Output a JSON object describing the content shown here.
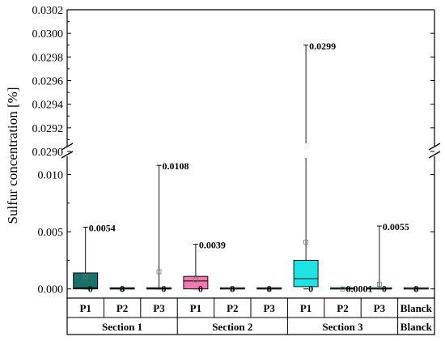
{
  "chart_data": {
    "type": "box",
    "ylabel": "Sulfur concentration [%]",
    "axis_break": true,
    "y_upper_segment": {
      "ylim": [
        0.029,
        0.0302
      ],
      "ticks": [
        "0.0290",
        "0.0292",
        "0.0294",
        "0.0296",
        "0.0298",
        "0.0300",
        "0.0302"
      ],
      "tick_values": [
        0.029,
        0.0292,
        0.0294,
        0.0296,
        0.0298,
        0.03,
        0.0302
      ]
    },
    "y_lower_segment": {
      "ylim": [
        -0.0008,
        0.0123
      ],
      "ticks": [
        "0.000",
        "0.005",
        "0.010"
      ],
      "tick_values": [
        0,
        0.005,
        0.01
      ]
    },
    "categories": [
      "P1",
      "P2",
      "P3",
      "P1",
      "P2",
      "P3",
      "P1",
      "P2",
      "P3",
      "Blanck"
    ],
    "groups": [
      {
        "label": "Section 1",
        "span": 3
      },
      {
        "label": "Section 2",
        "span": 3
      },
      {
        "label": "Section 3",
        "span": 3
      },
      {
        "label": "Blanck",
        "span": 1
      }
    ],
    "boxes": [
      {
        "category": "P1",
        "section": "Section 1",
        "color": "#1b7068",
        "q1": 0.0,
        "median": 0.0001,
        "q3": 0.0014,
        "mean": 0.0011,
        "min": 0.0,
        "max": 0.0054,
        "max_label": "0.0054",
        "min_label": "0"
      },
      {
        "category": "P2",
        "section": "Section 1",
        "color": "#1b7068",
        "q1": 0.0,
        "median": 0.0,
        "q3": 0.0,
        "mean": 0.0,
        "min": 0.0,
        "max": 0.0,
        "max_label": "0",
        "min_label": ""
      },
      {
        "category": "P3",
        "section": "Section 1",
        "color": "#1b7068",
        "q1": 0.0,
        "median": 0.0,
        "q3": 0.0001,
        "mean": 0.0015,
        "min": 0.0,
        "max": 0.0108,
        "max_label": "0.0108",
        "min_label": "0"
      },
      {
        "category": "P1",
        "section": "Section 2",
        "color": "#f07aaf",
        "q1": 0.0,
        "median": 0.0007,
        "q3": 0.0011,
        "mean": 0.0008,
        "min": 0.0,
        "max": 0.0039,
        "max_label": "0.0039",
        "min_label": "0"
      },
      {
        "category": "P2",
        "section": "Section 2",
        "color": "#f07aaf",
        "q1": 0.0,
        "median": 0.0,
        "q3": 0.0,
        "mean": 0.0,
        "min": 0.0,
        "max": 0.0,
        "max_label": "0",
        "min_label": ""
      },
      {
        "category": "P3",
        "section": "Section 2",
        "color": "#f07aaf",
        "q1": 0.0,
        "median": 0.0,
        "q3": 0.0,
        "mean": 0.0,
        "min": 0.0,
        "max": 0.0,
        "max_label": "0",
        "min_label": ""
      },
      {
        "category": "P1",
        "section": "Section 3",
        "color": "#1ee4e6",
        "q1": 0.0002,
        "median": 0.0009,
        "q3": 0.0025,
        "mean": 0.0041,
        "min": 0.0,
        "max": 0.0299,
        "max_label": "0.0299",
        "min_label": "0"
      },
      {
        "category": "P2",
        "section": "Section 3",
        "color": "#1ee4e6",
        "q1": 0.0,
        "median": 0.0,
        "q3": 0.0,
        "mean": 0.0,
        "min": 0.0,
        "max": 0.0001,
        "max_label": "0.0001",
        "min_label": ""
      },
      {
        "category": "P3",
        "section": "Section 3",
        "color": "#1ee4e6",
        "q1": 0.0,
        "median": 0.0,
        "q3": 0.0,
        "mean": 0.0004,
        "min": 0.0,
        "max": 0.0055,
        "max_label": "0.0055",
        "min_label": "0"
      },
      {
        "category": "Blanck",
        "section": "Blanck",
        "color": "#cccccc",
        "q1": 0.0,
        "median": 0.0,
        "q3": 0.0,
        "mean": 0.0,
        "min": 0.0,
        "max": 0.0,
        "max_label": "0",
        "min_label": ""
      }
    ]
  }
}
